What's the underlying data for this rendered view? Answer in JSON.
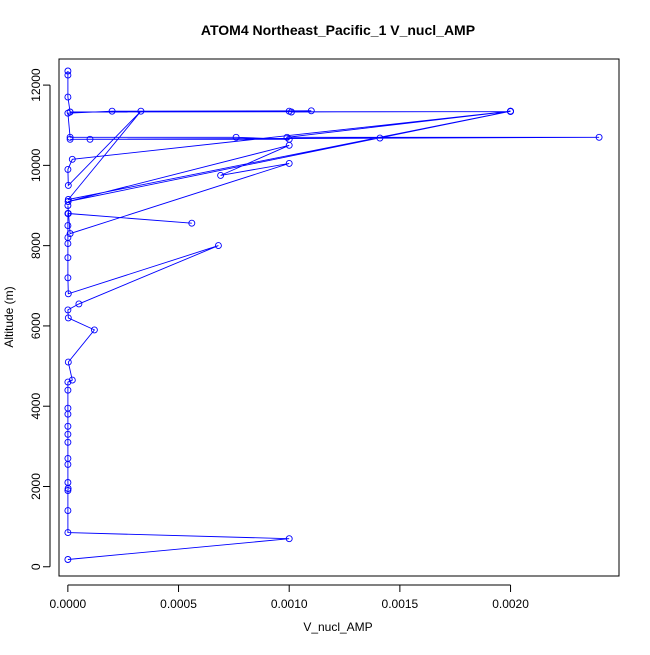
{
  "chart_data": {
    "type": "line",
    "title": "ATOM4 Northeast_Pacific_1 V_nucl_AMP",
    "xlabel": "V_nucl_AMP",
    "ylabel": "Altitude (m)",
    "xlim": [
      -4e-05,
      0.00249
    ],
    "ylim": [
      -230,
      12650
    ],
    "xticks": [
      0.0,
      0.0005,
      0.001,
      0.0015,
      0.002
    ],
    "xtick_labels": [
      "0.0000",
      "0.0005",
      "0.0010",
      "0.0015",
      "0.0020"
    ],
    "yticks": [
      0,
      2000,
      4000,
      6000,
      8000,
      10000,
      12000
    ],
    "ytick_labels": [
      "0",
      "2000",
      "4000",
      "6000",
      "8000",
      "10000",
      "12000"
    ],
    "grid": false,
    "legend": "none",
    "colors": {
      "series": "#0000ff",
      "axes": "#000000",
      "background": "#ffffff"
    },
    "series": [
      {
        "marker": "open-circle",
        "points": [
          [
            0,
            180
          ],
          [
            0.001,
            700
          ],
          [
            0,
            850
          ],
          [
            0,
            1400
          ],
          [
            0,
            1900
          ],
          [
            1e-06,
            1950
          ],
          [
            0,
            2100
          ],
          [
            0,
            2550
          ],
          [
            0,
            2700
          ],
          [
            0,
            3100
          ],
          [
            0,
            3300
          ],
          [
            0,
            3500
          ],
          [
            0,
            3800
          ],
          [
            0,
            3950
          ],
          [
            0,
            4400
          ],
          [
            0,
            4600
          ],
          [
            2e-05,
            4650
          ],
          [
            2e-06,
            5100
          ],
          [
            0.00012,
            5900
          ],
          [
            2e-06,
            6200
          ],
          [
            0,
            6400
          ],
          [
            5e-05,
            6550
          ],
          [
            0.00068,
            8000
          ],
          [
            2e-06,
            6800
          ],
          [
            0,
            7200
          ],
          [
            0,
            7700
          ],
          [
            0,
            8050
          ],
          [
            0,
            8200
          ],
          [
            0,
            8500
          ],
          [
            0,
            8800
          ],
          [
            0.00056,
            8560
          ],
          [
            2e-06,
            8800
          ],
          [
            0,
            9000
          ],
          [
            1e-05,
            8300
          ],
          [
            0.001,
            10050
          ],
          [
            0.00069,
            9750
          ],
          [
            0.001,
            10500
          ],
          [
            1e-06,
            9100
          ],
          [
            0.002,
            11350
          ],
          [
            2e-06,
            9150
          ],
          [
            0.00033,
            11350
          ],
          [
            2e-06,
            9500
          ],
          [
            0,
            9900
          ],
          [
            2e-05,
            10150
          ],
          [
            0.002,
            11350
          ],
          [
            0.00099,
            10700
          ],
          [
            0.0024,
            10700
          ],
          [
            0.0001,
            10650
          ],
          [
            0.00141,
            10680
          ],
          [
            1e-05,
            10650
          ],
          [
            0.001,
            10650
          ],
          [
            0.00076,
            10700
          ],
          [
            1e-05,
            10700
          ],
          [
            0,
            11300
          ],
          [
            0.0002,
            11350
          ],
          [
            0.0011,
            11360
          ],
          [
            0.001,
            11350
          ],
          [
            0.00101,
            11330
          ],
          [
            0.002,
            11340
          ],
          [
            1e-05,
            11330
          ],
          [
            0,
            11700
          ],
          [
            0,
            12250
          ],
          [
            0,
            12350
          ]
        ]
      }
    ]
  }
}
